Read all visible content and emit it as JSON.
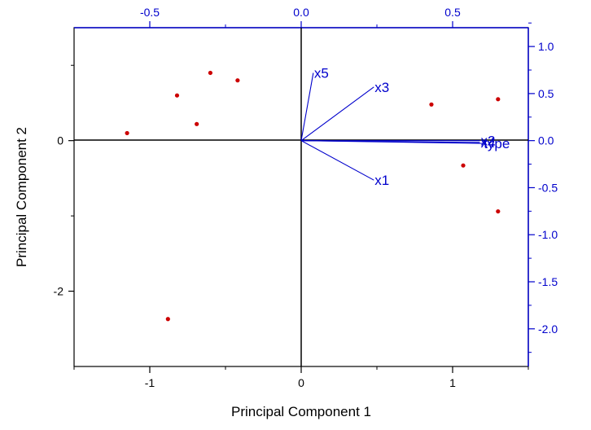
{
  "chart_data": {
    "type": "scatter",
    "title": "",
    "xlabel": "Principal Component 1",
    "ylabel": "Principal Component 2",
    "axes": {
      "bottom": {
        "range": [
          -1.5,
          1.5
        ],
        "ticks": [
          -1,
          0,
          1
        ],
        "tick_labels": [
          "-1",
          "0",
          "1"
        ],
        "color": "#000000"
      },
      "left": {
        "range": [
          -3,
          1.5
        ],
        "ticks": [
          -2,
          0
        ],
        "tick_labels": [
          "-2",
          "0"
        ],
        "color": "#000000"
      },
      "top": {
        "range": [
          -0.75,
          0.75
        ],
        "ticks": [
          -0.5,
          0,
          0.5
        ],
        "tick_labels": [
          "-0.5",
          "0.0",
          "0.5"
        ],
        "color": "#0000cc"
      },
      "right": {
        "range": [
          -2.4,
          1.2
        ],
        "ticks": [
          1.0,
          0.5,
          0.0,
          -0.5,
          -1.0,
          -1.5,
          -2.0
        ],
        "tick_labels": [
          "1.0",
          "0.5",
          "0.0",
          "-0.5",
          "-1.0",
          "-1.5",
          "-2.0"
        ],
        "color": "#0000cc"
      }
    },
    "grid": false,
    "zero_lines": true,
    "scores": {
      "color": "#cc0000",
      "points": [
        {
          "x": -1.15,
          "y": 0.1
        },
        {
          "x": -0.82,
          "y": 0.6
        },
        {
          "x": -0.6,
          "y": 0.9
        },
        {
          "x": -0.69,
          "y": 0.22
        },
        {
          "x": -0.42,
          "y": 0.8
        },
        {
          "x": -0.88,
          "y": -2.37
        },
        {
          "x": 0.86,
          "y": 0.48
        },
        {
          "x": 1.07,
          "y": -0.33
        },
        {
          "x": 1.3,
          "y": 0.55
        },
        {
          "x": 1.3,
          "y": -0.94
        }
      ]
    },
    "loadings": {
      "color": "#0000cc",
      "vectors": [
        {
          "label": "x5",
          "x": 0.04,
          "y": 0.72
        },
        {
          "label": "x3",
          "x": 0.24,
          "y": 0.57
        },
        {
          "label": "x1",
          "x": 0.24,
          "y": -0.42
        },
        {
          "label": "x2",
          "x": 0.59,
          "y": 0.0
        },
        {
          "label": "x4",
          "x": 0.59,
          "y": -0.02
        },
        {
          "label": "type",
          "x": 0.6,
          "y": -0.03
        }
      ]
    }
  }
}
